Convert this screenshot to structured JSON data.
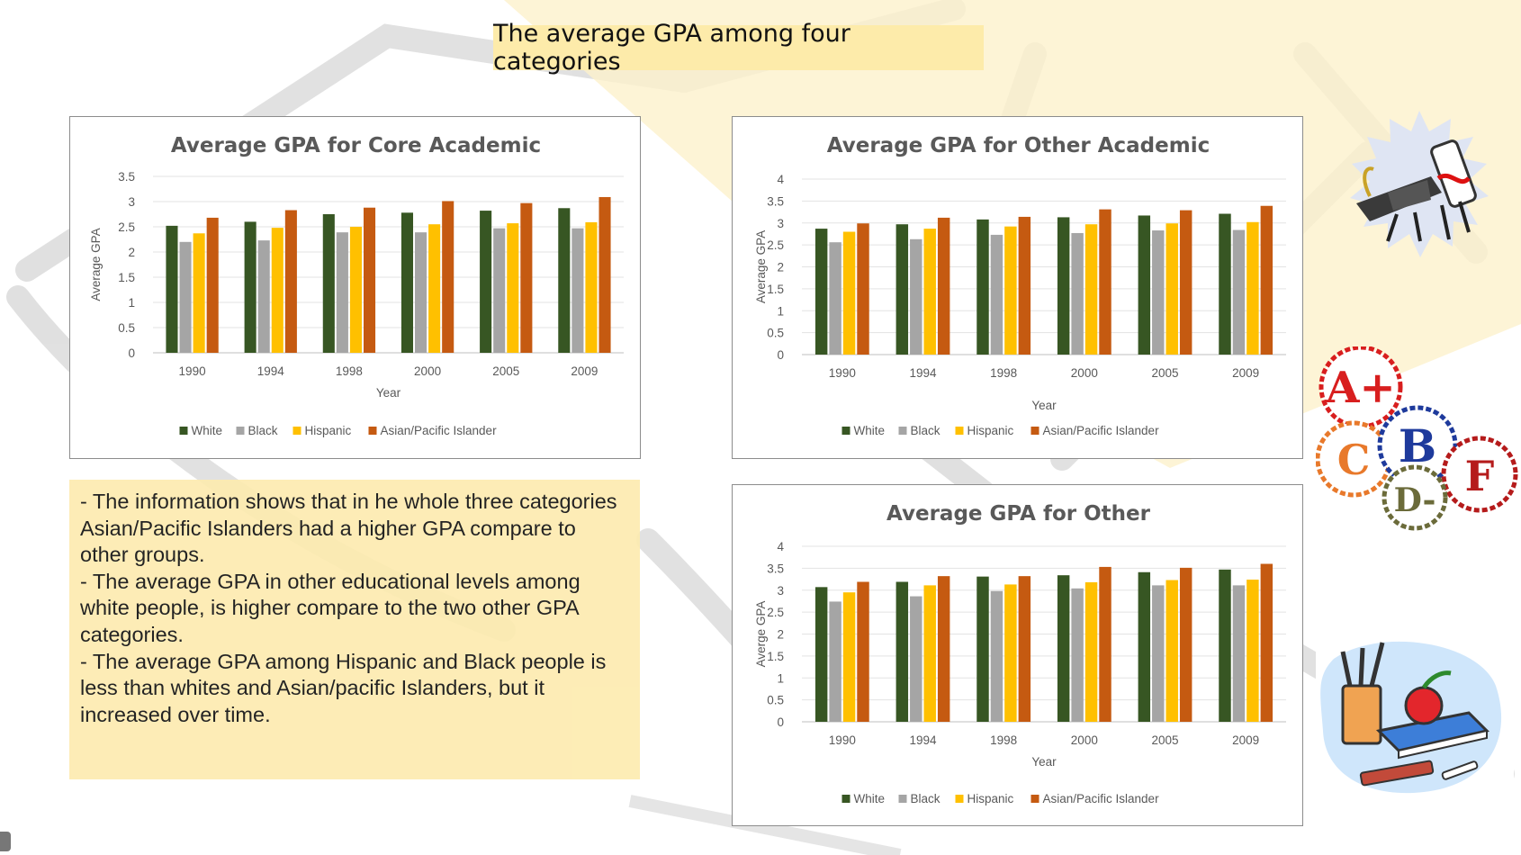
{
  "slide": {
    "title": "The average GPA among four categories"
  },
  "notes": [
    "- The information shows that in he whole three categories Asian/Pacific Islanders had a higher GPA compare to other groups.",
    "- The average GPA in other educational levels among white people, is higher compare to the two other GPA categories.",
    "- The average GPA among Hispanic and Black people is less than whites and Asian/pacific Islanders, but it increased over time."
  ],
  "colors": {
    "white": "#375623",
    "black": "#a5a5a5",
    "hispanic": "#ffc000",
    "asian": "#c55a11",
    "title_box": "#fdebaa",
    "notes_box": "#fdebb0"
  },
  "clipart": [
    "graduation-cap-diploma-icon",
    "grade-badges-icon",
    "school-supplies-icon"
  ],
  "chart_data": [
    {
      "type": "bar",
      "title": "Average GPA for Core Academic",
      "xlabel": "Year",
      "ylabel": "Average GPA",
      "categories": [
        "1990",
        "1994",
        "1998",
        "2000",
        "2005",
        "2009"
      ],
      "ylim": [
        0,
        3.5
      ],
      "yticks": [
        "0",
        "0.5",
        "1",
        "1.5",
        "2",
        "2.5",
        "3",
        "3.5"
      ],
      "yticks_values": [
        0,
        0.5,
        1,
        1.5,
        2,
        2.5,
        3,
        3.5
      ],
      "series": [
        {
          "name": "White",
          "values": [
            2.52,
            2.6,
            2.75,
            2.78,
            2.82,
            2.87
          ]
        },
        {
          "name": "Black",
          "values": [
            2.2,
            2.23,
            2.39,
            2.39,
            2.47,
            2.47
          ]
        },
        {
          "name": "Hispanic",
          "values": [
            2.37,
            2.48,
            2.5,
            2.55,
            2.57,
            2.59
          ]
        },
        {
          "name": "Asian/Pacific Islander",
          "values": [
            2.68,
            2.83,
            2.88,
            3.01,
            2.97,
            3.09
          ]
        }
      ]
    },
    {
      "type": "bar",
      "title": "Average GPA for Other Academic",
      "xlabel": "Year",
      "ylabel": "Average GPA",
      "categories": [
        "1990",
        "1994",
        "1998",
        "2000",
        "2005",
        "2009"
      ],
      "ylim": [
        0,
        4
      ],
      "yticks": [
        "0",
        "0.5",
        "1",
        "1.5",
        "2",
        "2.5",
        "3",
        "3.5",
        "4"
      ],
      "yticks_values": [
        0,
        0.5,
        1,
        1.5,
        2,
        2.5,
        3,
        3.5,
        4
      ],
      "series": [
        {
          "name": "White",
          "values": [
            2.87,
            2.97,
            3.08,
            3.13,
            3.17,
            3.21
          ]
        },
        {
          "name": "Black",
          "values": [
            2.56,
            2.63,
            2.73,
            2.77,
            2.83,
            2.84
          ]
        },
        {
          "name": "Hispanic",
          "values": [
            2.8,
            2.87,
            2.92,
            2.97,
            2.99,
            3.02
          ]
        },
        {
          "name": "Asian/Pacific Islander",
          "values": [
            2.99,
            3.12,
            3.14,
            3.31,
            3.29,
            3.39
          ]
        }
      ]
    },
    {
      "type": "bar",
      "title": "Average GPA for Other",
      "xlabel": "Year",
      "ylabel": "Averge GPA",
      "categories": [
        "1990",
        "1994",
        "1998",
        "2000",
        "2005",
        "2009"
      ],
      "ylim": [
        0,
        4
      ],
      "yticks": [
        "0",
        "0.5",
        "1",
        "1.5",
        "2",
        "2.5",
        "3",
        "3.5",
        "4"
      ],
      "yticks_values": [
        0,
        0.5,
        1,
        1.5,
        2,
        2.5,
        3,
        3.5,
        4
      ],
      "series": [
        {
          "name": "White",
          "values": [
            3.07,
            3.19,
            3.31,
            3.34,
            3.41,
            3.47
          ]
        },
        {
          "name": "Black",
          "values": [
            2.74,
            2.86,
            2.98,
            3.04,
            3.11,
            3.11
          ]
        },
        {
          "name": "Hispanic",
          "values": [
            2.95,
            3.11,
            3.13,
            3.18,
            3.23,
            3.24
          ]
        },
        {
          "name": "Asian/Pacific Islander",
          "values": [
            3.19,
            3.32,
            3.32,
            3.53,
            3.51,
            3.6
          ]
        }
      ]
    }
  ]
}
